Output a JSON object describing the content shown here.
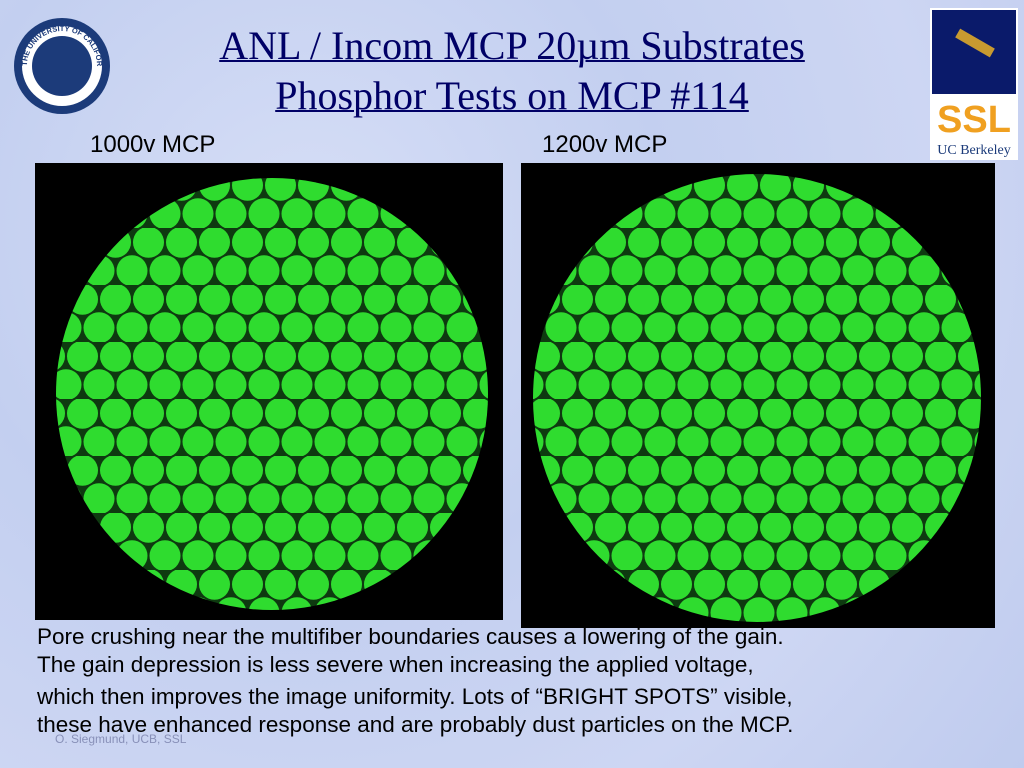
{
  "header": {
    "title_lines": [
      "ANL / Incom MCP 20µm Substrates",
      "Phosphor Tests on MCP #114"
    ]
  },
  "logos": {
    "left": {
      "text": "THE UNIVERSITY OF CALIFORNIA BERKELEY",
      "year": "1868"
    },
    "right": {
      "name": "SSL",
      "caption": "UC Berkeley"
    }
  },
  "images": [
    {
      "label": "1000v MCP"
    },
    {
      "label": "1200v MCP"
    }
  ],
  "body": {
    "lines": [
      "Pore crushing near the multifiber boundaries causes a lowering of the gain.",
      "The gain depression is less severe when increasing the applied voltage,",
      "which then improves the image uniformity. Lots of “BRIGHT SPOTS” visible,",
      "these have enhanced response and are probably dust particles on the MCP."
    ]
  },
  "footer": {
    "author": "O. Siegmund, UCB, SSL"
  }
}
